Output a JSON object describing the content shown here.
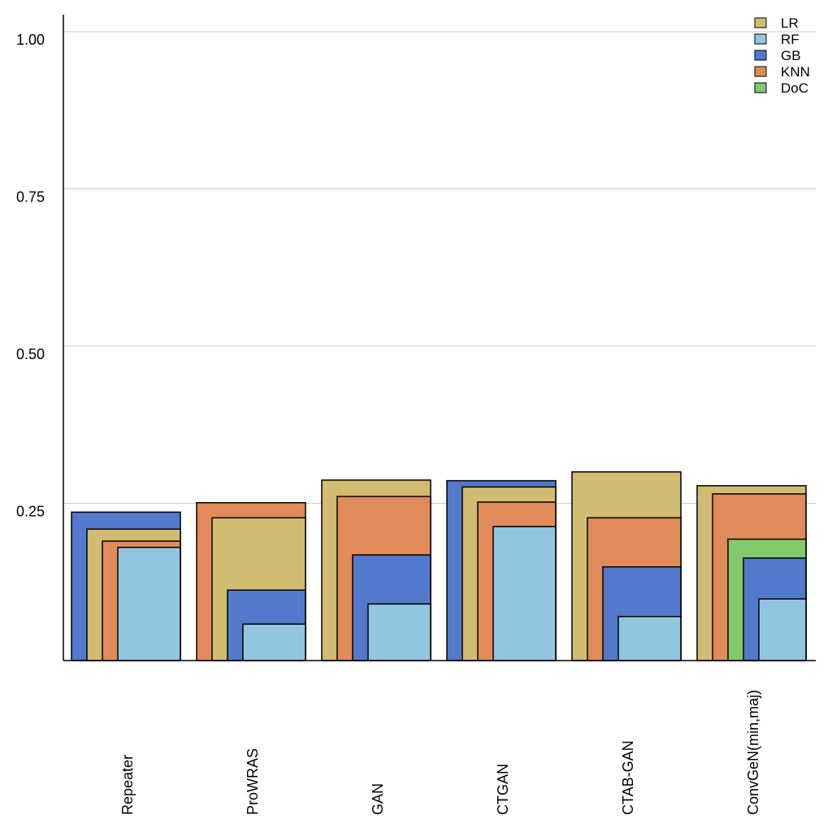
{
  "chart_data": {
    "type": "bar",
    "style": "nested-overlapping-bars",
    "title": "",
    "xlabel": "",
    "ylabel": "",
    "ylim": [
      0,
      1.02
    ],
    "yticks": [
      0.25,
      0.5,
      0.75,
      1.0
    ],
    "ytick_labels": [
      "0.25",
      "0.50",
      "0.75",
      "1.00"
    ],
    "grid": "horizontal",
    "legend_position": "top-right",
    "categories": [
      "Repeater",
      "ProWRAS",
      "GAN",
      "CTGAN",
      "CTAB-GAN",
      "ConvGeN(min,maj)"
    ],
    "series": [
      {
        "name": "LR",
        "color": "#d1bc72",
        "values": [
          0.209,
          0.227,
          0.287,
          0.276,
          0.3,
          0.278
        ]
      },
      {
        "name": "RF",
        "color": "#92c5e0",
        "values": [
          0.18,
          0.058,
          0.09,
          0.213,
          0.07,
          0.098
        ]
      },
      {
        "name": "GB",
        "color": "#5279cb",
        "values": [
          0.236,
          0.112,
          0.168,
          0.286,
          0.149,
          0.163
        ]
      },
      {
        "name": "KNN",
        "color": "#e08b59",
        "values": [
          0.19,
          0.251,
          0.261,
          0.252,
          0.227,
          0.265
        ]
      },
      {
        "name": "DoC",
        "color": "#82c96e",
        "values": [
          null,
          null,
          null,
          null,
          null,
          0.193
        ]
      }
    ]
  }
}
